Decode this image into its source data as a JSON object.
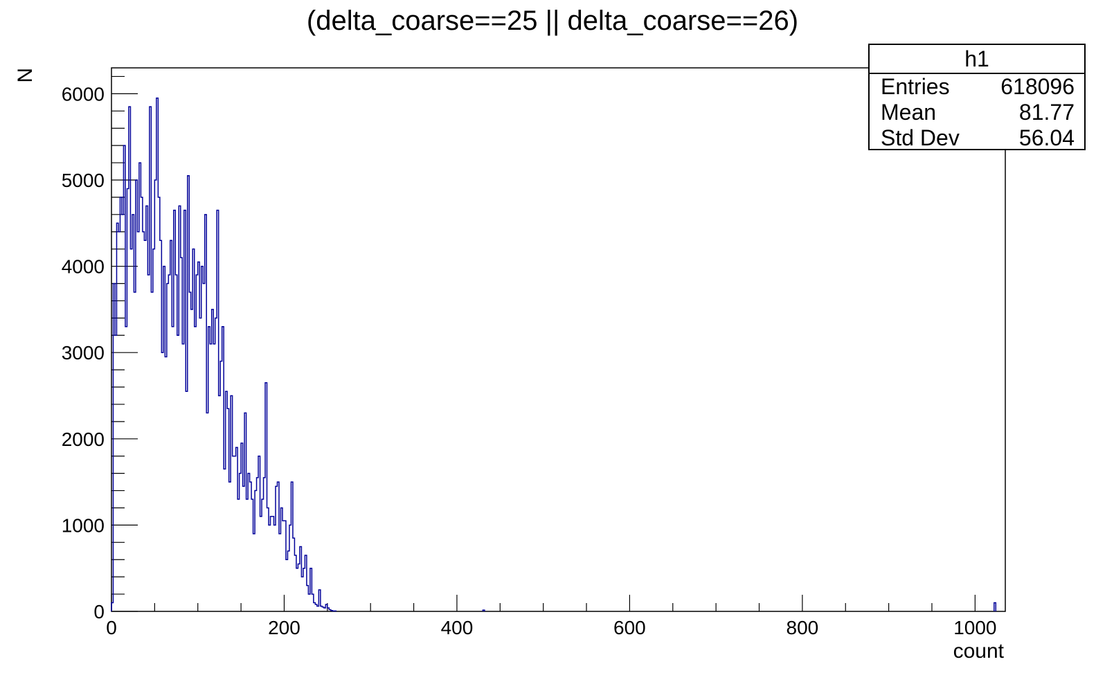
{
  "chart_data": {
    "type": "bar",
    "title": "(delta_coarse==25 || delta_coarse==26)",
    "xlabel": "count",
    "ylabel": "N",
    "xlim": [
      0,
      1035
    ],
    "ylim": [
      0,
      6300
    ],
    "xticks": [
      0,
      200,
      400,
      600,
      800,
      1000
    ],
    "yticks": [
      0,
      1000,
      2000,
      3000,
      4000,
      5000,
      6000
    ],
    "line_color": "#000099",
    "bin_width": 2,
    "series": [
      {
        "x": [
          0,
          2,
          4,
          6,
          8,
          10,
          12,
          14,
          16,
          18,
          20,
          22,
          24,
          26,
          28,
          30,
          32,
          34,
          36,
          38,
          40,
          42,
          44,
          46,
          48,
          50,
          52,
          54,
          56,
          58,
          60,
          62,
          64,
          66,
          68,
          70,
          72,
          74,
          76,
          78,
          80,
          82,
          84,
          86,
          88,
          90,
          92,
          94,
          96,
          98,
          100,
          102,
          104,
          106,
          108,
          110,
          112,
          114,
          116,
          118,
          120,
          122,
          124,
          126,
          128,
          130,
          132,
          134,
          136,
          138,
          140,
          142,
          144,
          146,
          148,
          150,
          152,
          154,
          156,
          158,
          160,
          162,
          164,
          166,
          168,
          170,
          172,
          174,
          176,
          178,
          180,
          182,
          184,
          186,
          188,
          190,
          192,
          194,
          196,
          198,
          200,
          202,
          204,
          206,
          208,
          210,
          212,
          214,
          216,
          218,
          220,
          222,
          224,
          226,
          228,
          230,
          232,
          234,
          236,
          238,
          240,
          242,
          244,
          246,
          248,
          250,
          252,
          254,
          256,
          258,
          430,
          1022
        ],
        "values": [
          100,
          3800,
          3200,
          4500,
          4400,
          4800,
          4600,
          5400,
          3300,
          4900,
          5850,
          4200,
          4600,
          3700,
          5000,
          4400,
          5200,
          4800,
          4400,
          4300,
          4700,
          3900,
          5850,
          3700,
          4200,
          5000,
          5950,
          4800,
          4300,
          3000,
          4000,
          2950,
          3800,
          3900,
          4300,
          3300,
          4650,
          3900,
          3200,
          4700,
          4100,
          3100,
          4650,
          2550,
          5050,
          3700,
          3500,
          4200,
          3300,
          3900,
          4050,
          3400,
          4000,
          3800,
          4600,
          2300,
          3300,
          3100,
          3500,
          3100,
          3400,
          4650,
          2500,
          2900,
          3300,
          1650,
          2550,
          2350,
          1500,
          2500,
          1800,
          1800,
          1900,
          1300,
          1600,
          1950,
          1450,
          2300,
          1300,
          1600,
          1500,
          1300,
          900,
          1400,
          1550,
          1800,
          1100,
          1300,
          1550,
          2650,
          1200,
          1000,
          1100,
          1100,
          1000,
          1450,
          1500,
          900,
          1200,
          1050,
          1050,
          600,
          700,
          1000,
          1500,
          850,
          650,
          500,
          550,
          750,
          400,
          500,
          650,
          300,
          200,
          500,
          200,
          100,
          80,
          60,
          250,
          60,
          50,
          40,
          80,
          40,
          20,
          10,
          5,
          5,
          15,
          100
        ]
      }
    ]
  },
  "stats": {
    "title": "h1",
    "rows": [
      {
        "label": "Entries",
        "value": "618096"
      },
      {
        "label": "Mean",
        "value": "81.77"
      },
      {
        "label": "Std Dev",
        "value": "56.04"
      }
    ]
  }
}
